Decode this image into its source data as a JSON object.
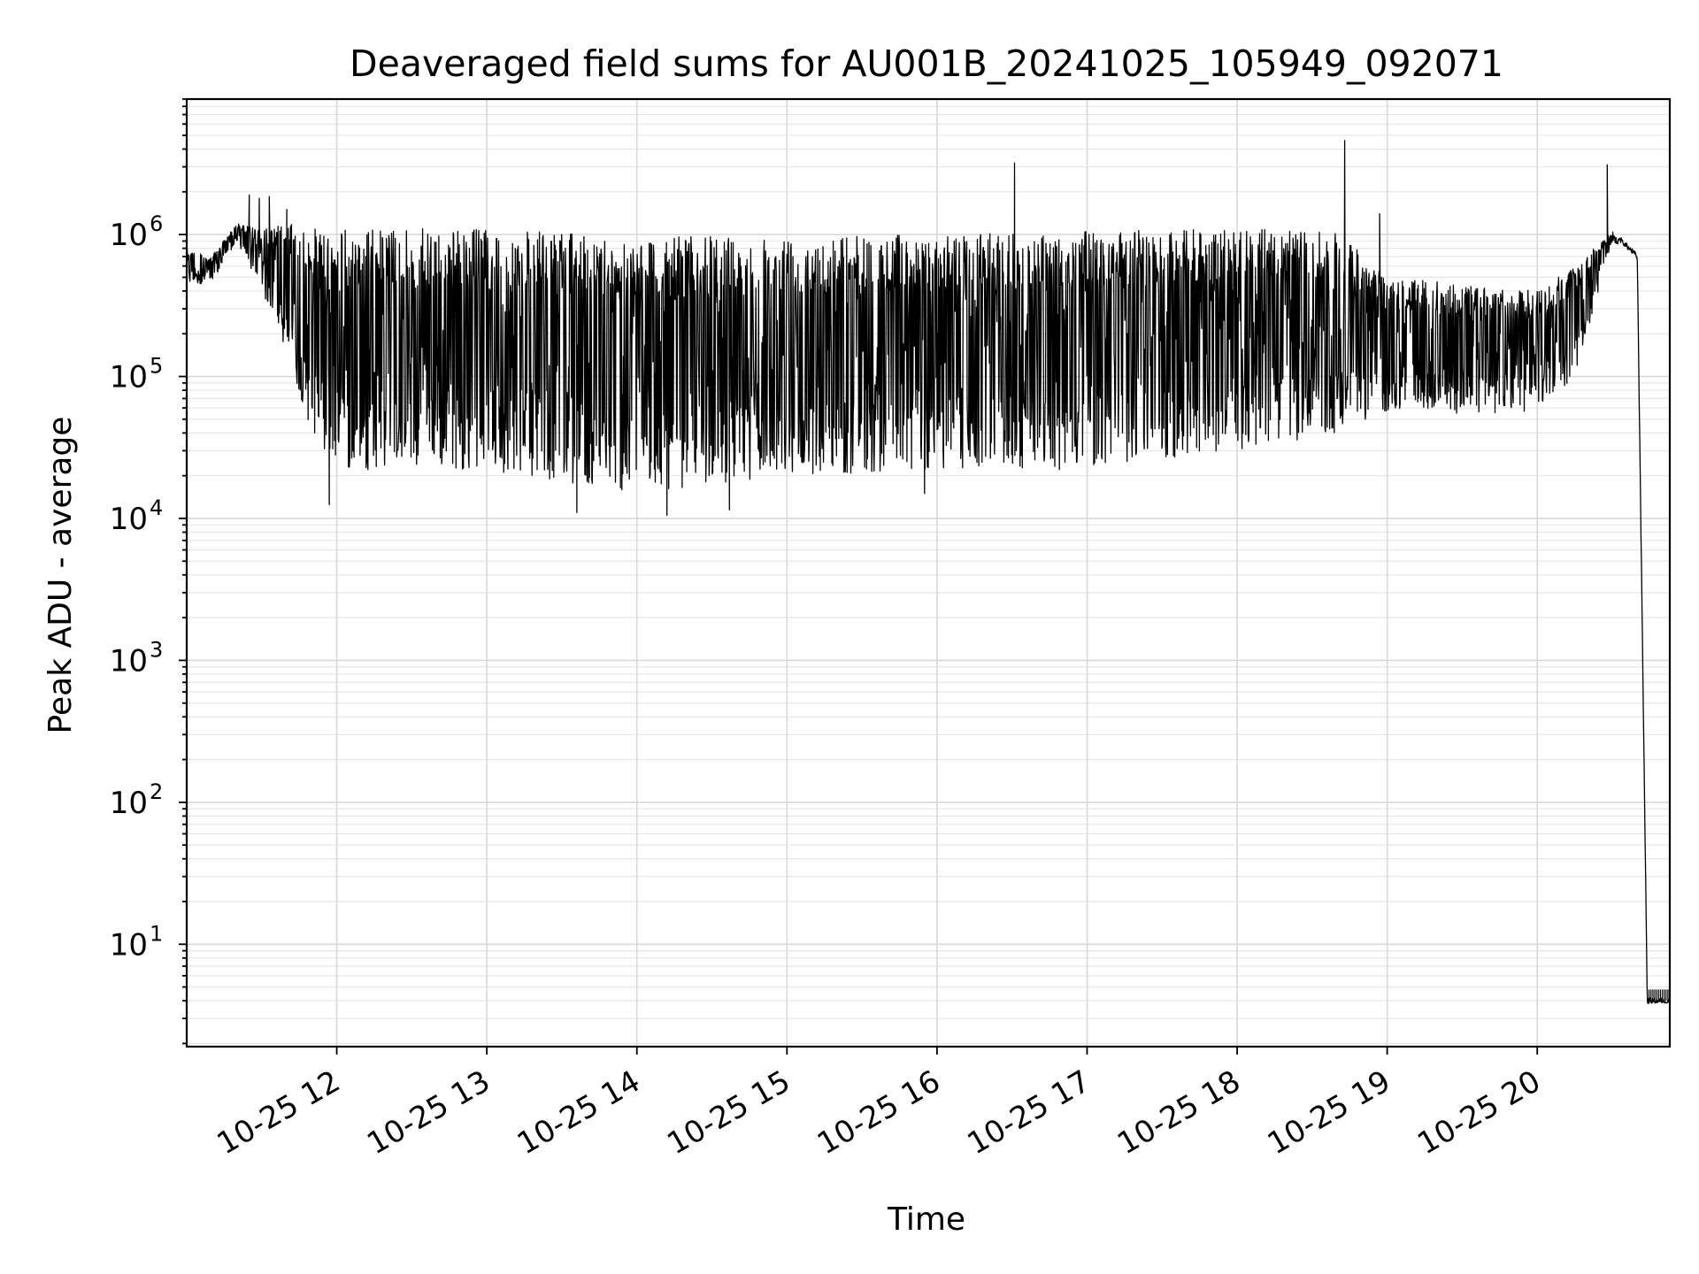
{
  "chart_data": {
    "type": "line",
    "title": "Deaveraged field sums for AU001B_20241025_105949_092071",
    "xlabel": "Time",
    "ylabel": "Peak ADU - average",
    "yscale": "log",
    "ylim": [
      1.9,
      9000000
    ],
    "xlim": [
      "2024-10-25 11:00",
      "2024-10-25 20:53"
    ],
    "grid": true,
    "line_color": "#000000",
    "x_ticks": [
      {
        "value": "2024-10-25 12:00",
        "label": "10-25 12"
      },
      {
        "value": "2024-10-25 13:00",
        "label": "10-25 13"
      },
      {
        "value": "2024-10-25 14:00",
        "label": "10-25 14"
      },
      {
        "value": "2024-10-25 15:00",
        "label": "10-25 15"
      },
      {
        "value": "2024-10-25 16:00",
        "label": "10-25 16"
      },
      {
        "value": "2024-10-25 17:00",
        "label": "10-25 17"
      },
      {
        "value": "2024-10-25 18:00",
        "label": "10-25 18"
      },
      {
        "value": "2024-10-25 19:00",
        "label": "10-25 19"
      },
      {
        "value": "2024-10-25 20:00",
        "label": "10-25 20"
      }
    ],
    "y_ticks": [
      {
        "value": 10,
        "base": "10",
        "exp": "1"
      },
      {
        "value": 100,
        "base": "10",
        "exp": "2"
      },
      {
        "value": 1000,
        "base": "10",
        "exp": "3"
      },
      {
        "value": 10000,
        "base": "10",
        "exp": "4"
      },
      {
        "value": 100000,
        "base": "10",
        "exp": "5"
      },
      {
        "value": 1000000,
        "base": "10",
        "exp": "6"
      }
    ],
    "series": [
      {
        "x_start": "2024-10-25 11:00",
        "x_end": "2024-10-25 20:53",
        "envelope": [
          {
            "t": "2024-10-25 11:00",
            "high": 800000,
            "low": 450000
          },
          {
            "t": "2024-10-25 11:10",
            "high": 700000,
            "low": 450000
          },
          {
            "t": "2024-10-25 11:20",
            "high": 1200000,
            "low": 900000
          },
          {
            "t": "2024-10-25 11:30",
            "high": 1100000,
            "low": 400000
          },
          {
            "t": "2024-10-25 11:40",
            "high": 1200000,
            "low": 150000
          },
          {
            "t": "2024-10-25 11:50",
            "high": 1100000,
            "low": 40000
          },
          {
            "t": "2024-10-25 12:00",
            "high": 1100000,
            "low": 22000
          },
          {
            "t": "2024-10-25 13:00",
            "high": 1100000,
            "low": 22000
          },
          {
            "t": "2024-10-25 14:00",
            "high": 950000,
            "low": 15000
          },
          {
            "t": "2024-10-25 15:00",
            "high": 1000000,
            "low": 20000
          },
          {
            "t": "2024-10-25 16:00",
            "high": 1000000,
            "low": 22000
          },
          {
            "t": "2024-10-25 17:00",
            "high": 1050000,
            "low": 22000
          },
          {
            "t": "2024-10-25 18:00",
            "high": 1100000,
            "low": 30000
          },
          {
            "t": "2024-10-25 18:40",
            "high": 1050000,
            "low": 40000
          },
          {
            "t": "2024-10-25 19:00",
            "high": 500000,
            "low": 55000
          },
          {
            "t": "2024-10-25 20:00",
            "high": 400000,
            "low": 55000
          },
          {
            "t": "2024-10-25 20:15",
            "high": 600000,
            "low": 100000
          },
          {
            "t": "2024-10-25 20:30",
            "high": 1050000,
            "low": 900000
          },
          {
            "t": "2024-10-25 20:40",
            "high": 700000,
            "low": 700000
          },
          {
            "t": "2024-10-25 20:44",
            "high": 4,
            "low": 4
          },
          {
            "t": "2024-10-25 20:53",
            "high": 4,
            "low": 4
          }
        ],
        "spikes": [
          {
            "t": "2024-10-25 11:25",
            "value": 1900000
          },
          {
            "t": "2024-10-25 11:29",
            "value": 1800000
          },
          {
            "t": "2024-10-25 11:33",
            "value": 1850000
          },
          {
            "t": "2024-10-25 11:40",
            "value": 1500000
          },
          {
            "t": "2024-10-25 16:31",
            "value": 3200000
          },
          {
            "t": "2024-10-25 18:43",
            "value": 4600000
          },
          {
            "t": "2024-10-25 18:57",
            "value": 1400000
          },
          {
            "t": "2024-10-25 20:28",
            "value": 3100000
          }
        ],
        "dips": [
          {
            "t": "2024-10-25 11:57",
            "value": 12500
          },
          {
            "t": "2024-10-25 13:36",
            "value": 11000
          },
          {
            "t": "2024-10-25 14:12",
            "value": 10500
          },
          {
            "t": "2024-10-25 14:37",
            "value": 11500
          },
          {
            "t": "2024-10-25 15:55",
            "value": 15000
          }
        ]
      }
    ]
  }
}
